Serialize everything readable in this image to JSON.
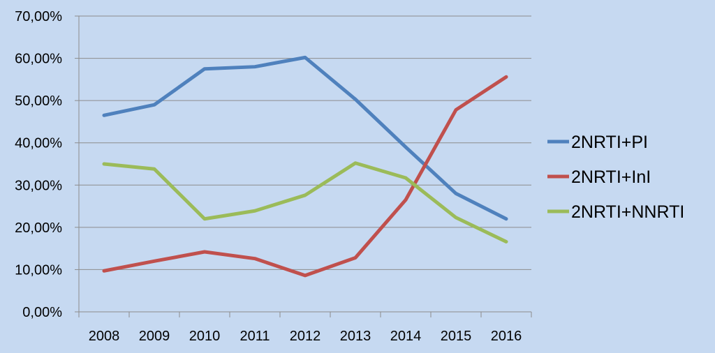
{
  "chart_data": {
    "type": "line",
    "x": [
      "2008",
      "2009",
      "2010",
      "2011",
      "2012",
      "2013",
      "2014",
      "2015",
      "2016"
    ],
    "ylim": [
      0,
      70
    ],
    "ytick_step": 10,
    "ytick_labels": [
      "0,00%",
      "10,00%",
      "20,00%",
      "30,00%",
      "40,00%",
      "50,00%",
      "60,00%",
      "70,00%"
    ],
    "grid": true,
    "legend_position": "right",
    "series": [
      {
        "name": "2NRTI+PI",
        "color": "#4f81bd",
        "values": [
          46.5,
          49.0,
          57.5,
          58.0,
          60.2,
          50.3,
          39.0,
          28.0,
          22.0
        ]
      },
      {
        "name": "2NRTI+InI",
        "color": "#c0504d",
        "values": [
          9.7,
          12.0,
          14.2,
          12.6,
          8.6,
          12.8,
          26.5,
          47.8,
          55.6
        ]
      },
      {
        "name": "2NRTI+NNRTI",
        "color": "#9bbb59",
        "values": [
          35.0,
          33.8,
          22.0,
          23.9,
          27.6,
          35.2,
          31.7,
          22.3,
          16.6
        ]
      }
    ]
  }
}
